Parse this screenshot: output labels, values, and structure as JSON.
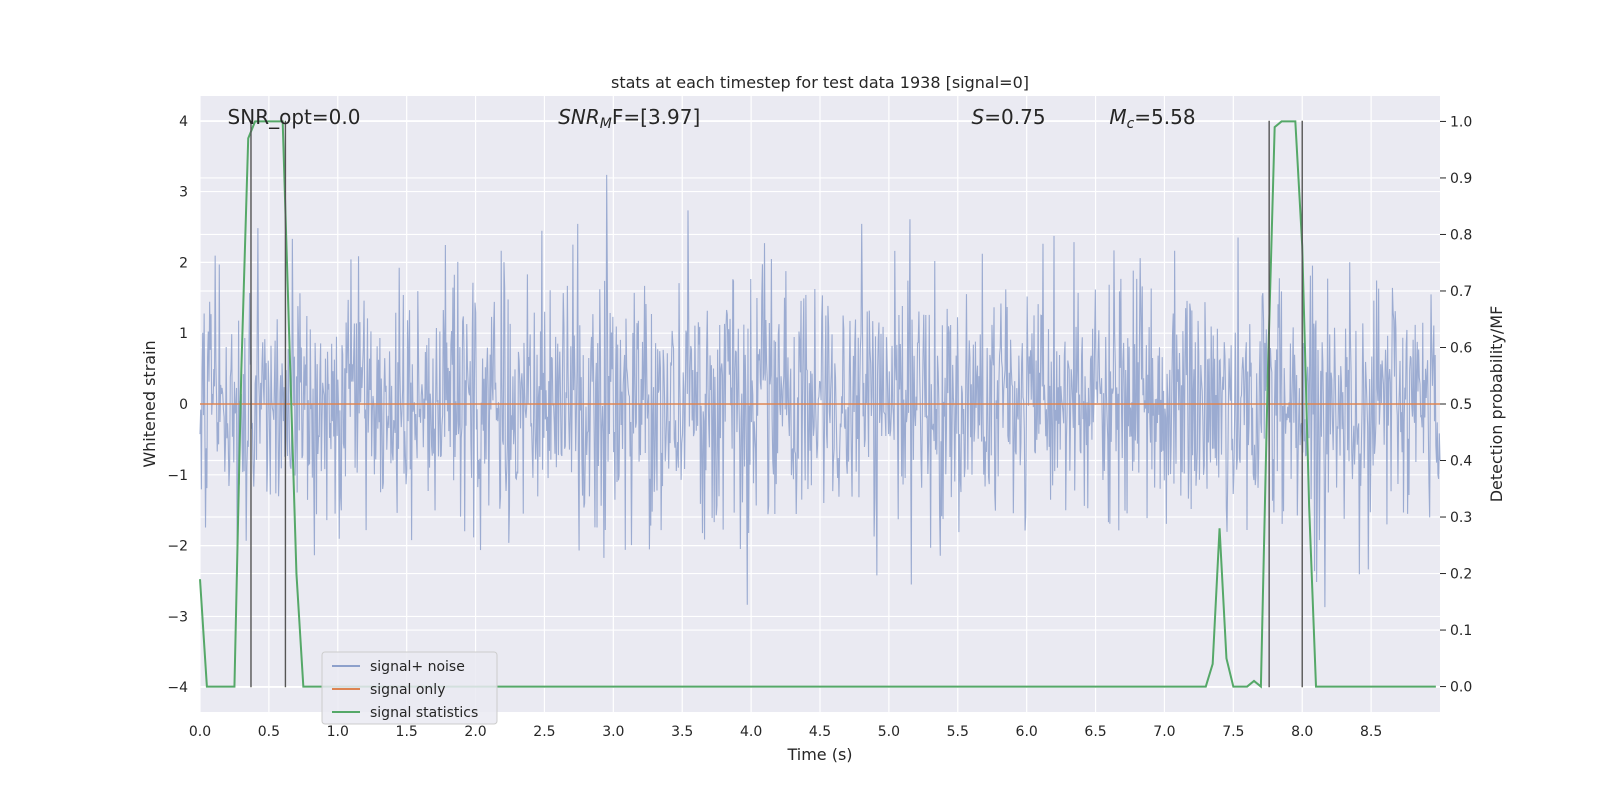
{
  "chart_data": {
    "type": "line",
    "title": "stats at each timestep for test data 1938 [signal=0]",
    "xlabel": "Time (s)",
    "ylabel": "Whitened strain",
    "y2label": "Detection probability/MF",
    "xlim": [
      0,
      9.0
    ],
    "ylim": [
      -4.35,
      4.35
    ],
    "y2lim": [
      -0.045,
      1.045
    ],
    "x_ticks": [
      0.0,
      0.5,
      1.0,
      1.5,
      2.0,
      2.5,
      3.0,
      3.5,
      4.0,
      4.5,
      5.0,
      5.5,
      6.0,
      6.5,
      7.0,
      7.5,
      8.0,
      8.5
    ],
    "x_tick_labels": [
      "0.0",
      "0.5",
      "1.0",
      "1.5",
      "2.0",
      "2.5",
      "3.0",
      "3.5",
      "4.0",
      "4.5",
      "5.0",
      "5.5",
      "6.0",
      "6.5",
      "7.0",
      "7.5",
      "8.0",
      "8.5"
    ],
    "y_ticks": [
      -4,
      -3,
      -2,
      -1,
      0,
      1,
      2,
      3,
      4
    ],
    "y_tick_labels": [
      "−4",
      "−3",
      "−2",
      "−1",
      "0",
      "1",
      "2",
      "3",
      "4"
    ],
    "y2_ticks": [
      0.0,
      0.1,
      0.2,
      0.3,
      0.4,
      0.5,
      0.6,
      0.7,
      0.8,
      0.9,
      1.0
    ],
    "y2_tick_labels": [
      "0.0",
      "0.1",
      "0.2",
      "0.3",
      "0.4",
      "0.5",
      "0.6",
      "0.7",
      "0.8",
      "0.9",
      "1.0"
    ],
    "grid": true,
    "legend_position": "lower-left",
    "annotations": [
      {
        "text": "SNR_opt=0.0",
        "x": 0.2
      },
      {
        "text": "SNR",
        "sub": "M",
        "after": "F=[3.97]",
        "x": 2.6,
        "italic": true
      },
      {
        "text": "S",
        "after": "=0.75",
        "x": 5.6,
        "italic": true
      },
      {
        "text": "M",
        "sub": "c",
        "after": "=5.58",
        "x": 6.6,
        "italic": true
      }
    ],
    "vlines": [
      {
        "x": 0.37,
        "ymin": -4.0,
        "ymax": 4.0
      },
      {
        "x": 0.62,
        "ymin": -4.0,
        "ymax": 4.0
      },
      {
        "x": 7.76,
        "ymin": -4.0,
        "ymax": 4.0
      },
      {
        "x": 8.0,
        "ymin": -4.0,
        "ymax": 4.0
      }
    ],
    "series": [
      {
        "name": "signal+ noise",
        "color": "#8da0cb",
        "kind": "noise",
        "sigma": 0.85,
        "n_points": 1800
      },
      {
        "name": "signal only",
        "color": "#dd8452",
        "kind": "line",
        "x": [
          0.0,
          9.0
        ],
        "y": [
          0.0,
          0.0
        ]
      },
      {
        "name": "signal statistics",
        "color": "#55a868",
        "kind": "line",
        "axis": "right",
        "x": [
          0.0,
          0.05,
          0.1,
          0.15,
          0.2,
          0.25,
          0.3,
          0.35,
          0.4,
          0.45,
          0.5,
          0.55,
          0.6,
          0.65,
          0.7,
          0.75,
          0.8,
          1.0,
          2.0,
          3.0,
          4.0,
          5.0,
          5.4,
          5.5,
          5.6,
          6.0,
          7.0,
          7.3,
          7.35,
          7.4,
          7.45,
          7.5,
          7.55,
          7.6,
          7.65,
          7.7,
          7.75,
          7.8,
          7.85,
          7.9,
          7.95,
          8.0,
          8.05,
          8.1,
          8.15,
          8.5,
          8.97
        ],
        "y": [
          0.19,
          0.0,
          0.0,
          0.0,
          0.0,
          0.0,
          0.56,
          0.97,
          1.0,
          1.0,
          1.0,
          1.0,
          1.0,
          0.6,
          0.2,
          0.0,
          0.0,
          0.0,
          0.0,
          0.0,
          0.0,
          0.0,
          0.0,
          0.0,
          0.0,
          0.0,
          0.0,
          0.0,
          0.04,
          0.28,
          0.05,
          0.0,
          0.0,
          0.0,
          0.01,
          0.0,
          0.55,
          0.99,
          1.0,
          1.0,
          1.0,
          0.78,
          0.32,
          0.0,
          0.0,
          0.0,
          0.0
        ]
      }
    ]
  }
}
